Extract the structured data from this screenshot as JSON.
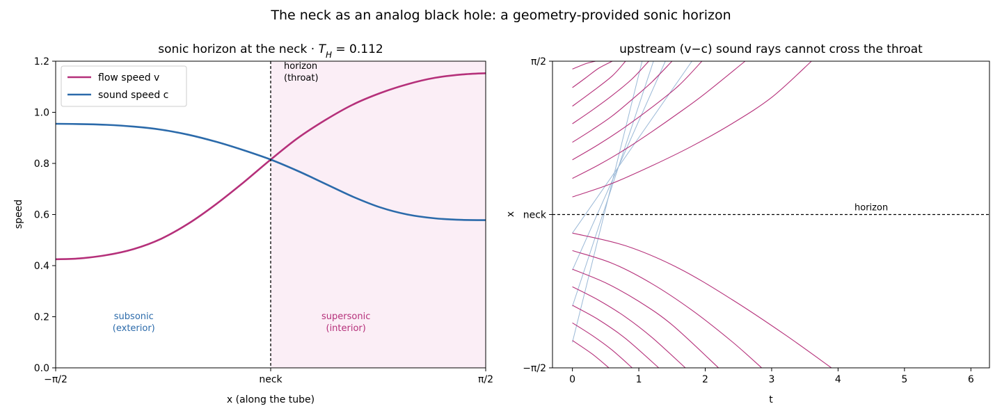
{
  "suptitle": "The neck as an analog black hole: a geometry-provided sonic horizon",
  "colors": {
    "flow": "#b5307a",
    "sound": "#2b6aaa",
    "ray_down": "#9ab8d6",
    "supersonic_fill": "#fbeef6"
  },
  "chart_data": [
    {
      "type": "line",
      "title": "sonic horizon at the neck  ·  ",
      "title_math": "T",
      "title_math_sub": "H",
      "title_value": " = 0.112",
      "xlabel": "x (along the tube)",
      "ylabel": "speed",
      "xlim": [
        -1.5708,
        1.5708
      ],
      "ylim": [
        0,
        1.2
      ],
      "x_ticks": [
        {
          "value": -1.5708,
          "label": "−π/2"
        },
        {
          "value": 0,
          "label": "neck"
        },
        {
          "value": 1.5708,
          "label": "π/2"
        }
      ],
      "y_ticks": [
        {
          "value": 0.0,
          "label": "0.0"
        },
        {
          "value": 0.2,
          "label": "0.2"
        },
        {
          "value": 0.4,
          "label": "0.4"
        },
        {
          "value": 0.6,
          "label": "0.6"
        },
        {
          "value": 0.8,
          "label": "0.8"
        },
        {
          "value": 1.0,
          "label": "1.0"
        },
        {
          "value": 1.2,
          "label": "1.2"
        }
      ],
      "legend_position": "top-left",
      "series": [
        {
          "name": "flow speed v",
          "color": "#b5307a",
          "x": [
            -1.5708,
            -1.4,
            -1.2,
            -1.0,
            -0.8,
            -0.6,
            -0.4,
            -0.2,
            0.0,
            0.2,
            0.4,
            0.6,
            0.8,
            1.0,
            1.2,
            1.4,
            1.5708
          ],
          "y": [
            0.425,
            0.428,
            0.441,
            0.465,
            0.505,
            0.565,
            0.64,
            0.725,
            0.815,
            0.9,
            0.97,
            1.03,
            1.075,
            1.11,
            1.135,
            1.148,
            1.153
          ]
        },
        {
          "name": "sound speed c",
          "color": "#2b6aaa",
          "x": [
            -1.5708,
            -1.4,
            -1.2,
            -1.0,
            -0.8,
            -0.6,
            -0.4,
            -0.2,
            0.0,
            0.2,
            0.4,
            0.6,
            0.8,
            1.0,
            1.2,
            1.4,
            1.5708
          ],
          "y": [
            0.955,
            0.954,
            0.951,
            0.944,
            0.932,
            0.912,
            0.885,
            0.852,
            0.815,
            0.77,
            0.72,
            0.67,
            0.628,
            0.6,
            0.585,
            0.579,
            0.578
          ]
        }
      ],
      "vline": {
        "x": 0,
        "label_line1": "horizon",
        "label_line2": "(throat)"
      },
      "regions": [
        {
          "label_line1": "subsonic",
          "label_line2": "(exterior)",
          "x": -1.0,
          "y": 0.18,
          "color": "#2b6aaa"
        },
        {
          "label_line1": "supersonic",
          "label_line2": "(interior)",
          "x": 0.55,
          "y": 0.18,
          "color": "#b5307a",
          "shade_from": 0,
          "shade_to": 1.5708
        }
      ]
    },
    {
      "type": "line",
      "title": "upstream (v−c) sound rays cannot cross the throat",
      "xlabel": "t",
      "ylabel": "x",
      "xlim": [
        -0.3,
        6.28
      ],
      "ylim": [
        -1.5708,
        1.5708
      ],
      "x_ticks": [
        {
          "value": 0,
          "label": "0"
        },
        {
          "value": 1,
          "label": "1"
        },
        {
          "value": 2,
          "label": "2"
        },
        {
          "value": 3,
          "label": "3"
        },
        {
          "value": 4,
          "label": "4"
        },
        {
          "value": 5,
          "label": "5"
        },
        {
          "value": 6,
          "label": "6"
        }
      ],
      "y_ticks": [
        {
          "value": -1.5708,
          "label": "−π/2"
        },
        {
          "value": 0,
          "label": "neck"
        },
        {
          "value": 1.5708,
          "label": "π/2"
        }
      ],
      "hline": {
        "y": 0,
        "label": "horizon",
        "label_x": 4.5
      },
      "upstream_rays_color": "#b5307a",
      "upstream_rays": [
        {
          "x": [
            0,
            0.6,
            1.2,
            1.8,
            2.4,
            3.0,
            3.6
          ],
          "y": [
            0.18,
            0.32,
            0.5,
            0.7,
            0.93,
            1.2,
            1.5708
          ]
        },
        {
          "x": [
            0,
            0.4,
            0.8,
            1.2,
            1.6,
            2.0,
            2.6
          ],
          "y": [
            0.37,
            0.51,
            0.67,
            0.85,
            1.04,
            1.24,
            1.5708
          ]
        },
        {
          "x": [
            0,
            0.4,
            0.8,
            1.2,
            1.6,
            1.95
          ],
          "y": [
            0.56,
            0.72,
            0.9,
            1.1,
            1.32,
            1.5708
          ]
        },
        {
          "x": [
            0,
            0.3,
            0.6,
            0.9,
            1.2,
            1.5
          ],
          "y": [
            0.74,
            0.87,
            1.01,
            1.18,
            1.36,
            1.5708
          ]
        },
        {
          "x": [
            0,
            0.3,
            0.6,
            0.9,
            1.15
          ],
          "y": [
            0.93,
            1.07,
            1.22,
            1.39,
            1.5708
          ]
        },
        {
          "x": [
            0,
            0.3,
            0.6,
            0.8
          ],
          "y": [
            1.11,
            1.26,
            1.42,
            1.5708
          ]
        },
        {
          "x": [
            0,
            0.2,
            0.4,
            0.6
          ],
          "y": [
            1.3,
            1.4,
            1.5,
            1.5708
          ]
        },
        {
          "x": [
            0,
            0.2,
            0.35
          ],
          "y": [
            1.49,
            1.545,
            1.5708
          ]
        },
        {
          "x": [
            0,
            0.8,
            1.6,
            2.4,
            3.2,
            3.9
          ],
          "y": [
            -0.19,
            -0.32,
            -0.55,
            -0.87,
            -1.23,
            -1.5708
          ]
        },
        {
          "x": [
            0,
            0.6,
            1.2,
            1.8,
            2.4,
            2.85
          ],
          "y": [
            -0.37,
            -0.5,
            -0.71,
            -0.98,
            -1.3,
            -1.5708
          ]
        },
        {
          "x": [
            0,
            0.5,
            1.0,
            1.5,
            2.2
          ],
          "y": [
            -0.56,
            -0.7,
            -0.89,
            -1.13,
            -1.5708
          ]
        },
        {
          "x": [
            0,
            0.4,
            0.8,
            1.2,
            1.7
          ],
          "y": [
            -0.74,
            -0.88,
            -1.05,
            -1.26,
            -1.5708
          ]
        },
        {
          "x": [
            0,
            0.4,
            0.8,
            1.3
          ],
          "y": [
            -0.93,
            -1.08,
            -1.27,
            -1.5708
          ]
        },
        {
          "x": [
            0,
            0.3,
            0.6,
            0.9
          ],
          "y": [
            -1.11,
            -1.24,
            -1.39,
            -1.5708
          ]
        },
        {
          "x": [
            0,
            0.3,
            0.55
          ],
          "y": [
            -1.29,
            -1.43,
            -1.5708
          ]
        }
      ],
      "downstream_rays_color": "#9ab8d6",
      "downstream_rays": [
        {
          "x": [
            0,
            1.05
          ],
          "y": [
            -1.31,
            1.5708
          ]
        },
        {
          "x": [
            0,
            1.22
          ],
          "y": [
            -0.94,
            1.5708
          ]
        },
        {
          "x": [
            0,
            1.4
          ],
          "y": [
            -0.57,
            1.5708
          ]
        },
        {
          "x": [
            0,
            1.8
          ],
          "y": [
            -0.19,
            1.5708
          ]
        }
      ]
    }
  ]
}
